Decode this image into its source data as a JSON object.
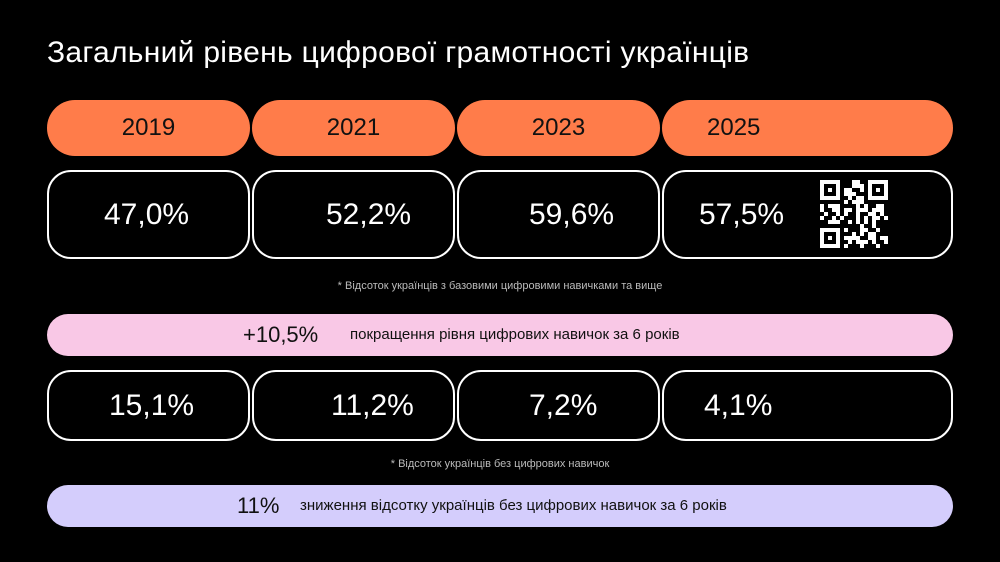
{
  "title": "Загальний рівень цифрової грамотності українців",
  "years": [
    "2019",
    "2021",
    "2023",
    "2025"
  ],
  "basic_skills": [
    "47,0%",
    "52,2%",
    "59,6%",
    "57,5%"
  ],
  "basic_skills_note": "* Відсоток українців з базовими цифровими навичками та вище",
  "improvement": {
    "value": "+10,5%",
    "text": "покращення рівня цифрових навичок за 6 років"
  },
  "no_skills": [
    "15,1%",
    "11,2%",
    "7,2%",
    "4,1%"
  ],
  "no_skills_note": "* Відсоток українців без цифрових навичок",
  "reduction": {
    "value": "11%",
    "text": "зниження відсотку українців без цифрових навичок за 6 років"
  }
}
